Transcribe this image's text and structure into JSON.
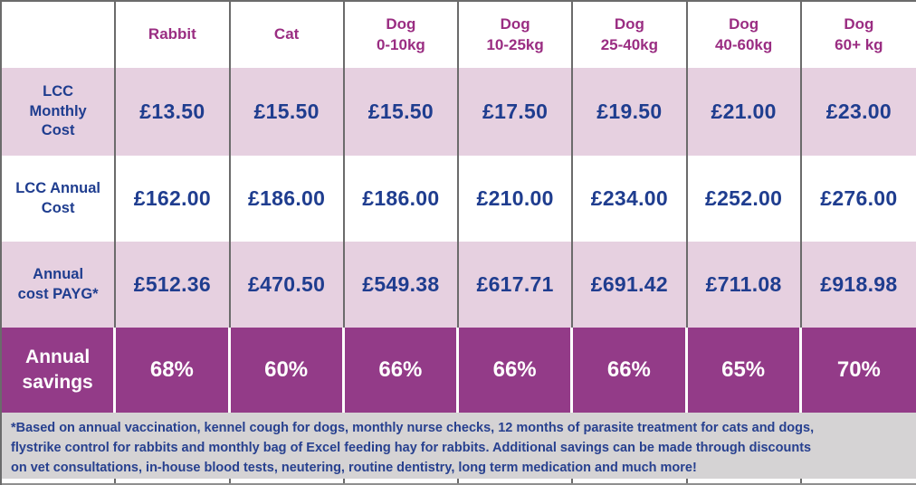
{
  "colors": {
    "header-text": "#9a2d82",
    "value-text": "#1f3d8f",
    "pink-row-bg": "#e6d0e0",
    "purple-row-bg": "#933b88",
    "footnote-bg": "#d5d3d4",
    "footnote-text": "#27408f",
    "border": "#6b6b6b"
  },
  "table": {
    "columns": [
      {
        "line1": "Rabbit"
      },
      {
        "line1": "Cat"
      },
      {
        "line1": "Dog",
        "line2": "0-10kg"
      },
      {
        "line1": "Dog",
        "line2": "10-25kg"
      },
      {
        "line1": "Dog",
        "line2": "25-40kg"
      },
      {
        "line1": "Dog",
        "line2": "40-60kg"
      },
      {
        "line1": "Dog",
        "line2": "60+ kg"
      }
    ],
    "rows": [
      {
        "label_lines": [
          "LCC",
          "Monthly",
          "Cost"
        ],
        "values": [
          "£13.50",
          "£15.50",
          "£15.50",
          "£17.50",
          "£19.50",
          "£21.00",
          "£23.00"
        ]
      },
      {
        "label_lines": [
          "LCC Annual",
          "Cost"
        ],
        "values": [
          "£162.00",
          "£186.00",
          "£186.00",
          "£210.00",
          "£234.00",
          "£252.00",
          "£276.00"
        ]
      },
      {
        "label_lines": [
          "Annual",
          "cost PAYG*"
        ],
        "values": [
          "£512.36",
          "£470.50",
          "£549.38",
          "£617.71",
          "£691.42",
          "£711.08",
          "£918.98"
        ]
      },
      {
        "label_lines": [
          "Annual",
          "savings"
        ],
        "values": [
          "68%",
          "60%",
          "66%",
          "66%",
          "66%",
          "65%",
          "70%"
        ]
      }
    ],
    "footnote_lines": [
      "*Based on annual vaccination, kennel cough for dogs, monthly nurse checks, 12 months of parasite treatment for cats and dogs,",
      "flystrike control for rabbits and monthly bag of Excel feeding hay for rabbits. Additional savings can be made through discounts",
      "on vet consultations, in-house blood tests, neutering, routine dentistry, long term medication and much more!"
    ]
  },
  "chart_data": {
    "type": "table",
    "title": "LCC pet plan cost comparison",
    "categories": [
      "Rabbit",
      "Cat",
      "Dog 0-10kg",
      "Dog 10-25kg",
      "Dog 25-40kg",
      "Dog 40-60kg",
      "Dog 60+ kg"
    ],
    "series": [
      {
        "name": "LCC Monthly Cost",
        "unit": "GBP",
        "values": [
          13.5,
          15.5,
          15.5,
          17.5,
          19.5,
          21.0,
          23.0
        ]
      },
      {
        "name": "LCC Annual Cost",
        "unit": "GBP",
        "values": [
          162.0,
          186.0,
          186.0,
          210.0,
          234.0,
          252.0,
          276.0
        ]
      },
      {
        "name": "Annual cost PAYG*",
        "unit": "GBP",
        "values": [
          512.36,
          470.5,
          549.38,
          617.71,
          691.42,
          711.08,
          918.98
        ]
      },
      {
        "name": "Annual savings",
        "unit": "%",
        "values": [
          68,
          60,
          66,
          66,
          66,
          65,
          70
        ]
      }
    ],
    "footnote": "*Based on annual vaccination, kennel cough for dogs, monthly nurse checks, 12 months of parasite treatment for cats and dogs, flystrike control for rabbits and monthly bag of Excel feeding hay for rabbits. Additional savings can be made through discounts on vet consultations, in-house blood tests, neutering, routine dentistry, long term medication and much more!"
  }
}
